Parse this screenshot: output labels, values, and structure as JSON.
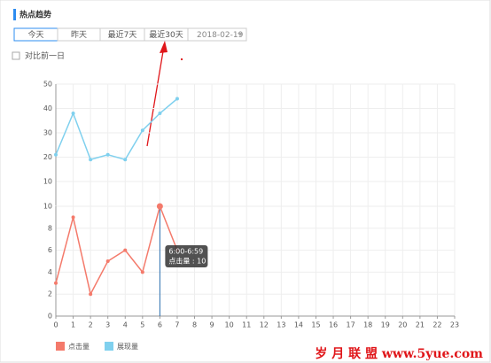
{
  "header": {
    "title": "热点趋势"
  },
  "tabs": [
    "今天",
    "昨天",
    "最近7天",
    "最近30天"
  ],
  "date": "2018-02-19",
  "checkbox_label": "对比前一日",
  "watermark": "岁 月 联 盟 www.5yue.com",
  "chart_data": [
    {
      "type": "line",
      "x": [
        0,
        1,
        2,
        3,
        4,
        5,
        6,
        7
      ],
      "series": [
        {
          "name": "展现量",
          "color": "#7fd0ee",
          "values": [
            21,
            38,
            19,
            21,
            19,
            31,
            38,
            44
          ]
        }
      ],
      "xlim": [
        0,
        23
      ],
      "xticks": [
        0,
        1,
        2,
        3,
        4,
        5,
        6,
        7,
        8,
        9,
        10,
        11,
        12,
        13,
        14,
        15,
        16,
        17,
        18,
        19,
        20,
        21,
        22,
        23
      ],
      "ylim": [
        0,
        50
      ],
      "yticks": [
        10,
        20,
        30,
        40,
        50
      ],
      "grid": true
    },
    {
      "type": "line",
      "x": [
        0,
        1,
        2,
        3,
        4,
        5,
        6,
        7
      ],
      "series": [
        {
          "name": "点击量",
          "color": "#f47a6b",
          "values": [
            3,
            9,
            2,
            5,
            6,
            4,
            10,
            6
          ]
        }
      ],
      "xlim": [
        0,
        23
      ],
      "xticks": [
        0,
        1,
        2,
        3,
        4,
        5,
        6,
        7,
        8,
        9,
        10,
        11,
        12,
        13,
        14,
        15,
        16,
        17,
        18,
        19,
        20,
        21,
        22,
        23
      ],
      "ylim": [
        0,
        10
      ],
      "yticks": [
        0,
        2,
        4,
        6,
        8,
        10
      ],
      "grid": true,
      "tooltip": {
        "x": 6,
        "title": "6:00-6:59",
        "text": "点击量 : 10"
      }
    }
  ]
}
